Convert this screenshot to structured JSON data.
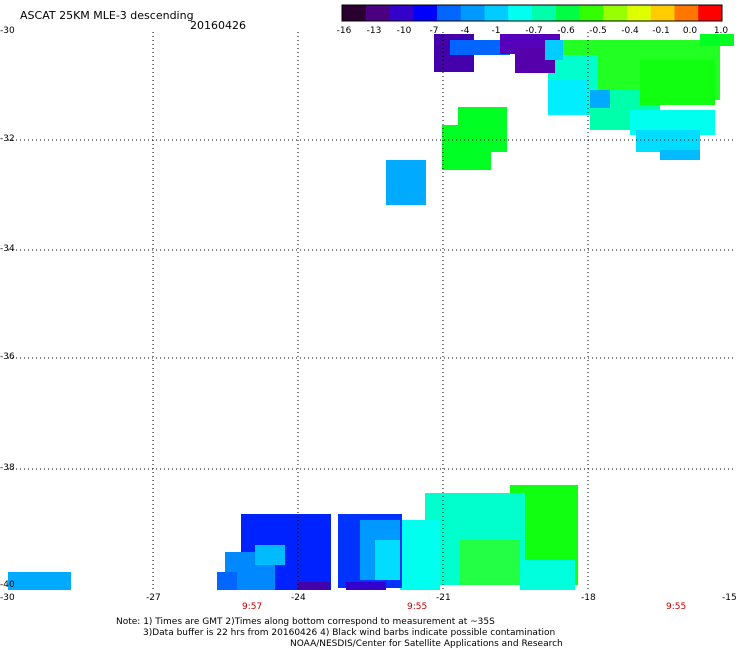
{
  "header": {
    "title": "ASCAT 25KM MLE-3 descending",
    "date": "20160426"
  },
  "colorbar": {
    "labels": [
      "-16",
      "-13",
      "-10",
      "-7",
      "-4",
      "-1",
      "-0.7",
      "-0.6",
      "-0.5",
      "-0.4",
      "-0.1",
      "0.0",
      "1.0"
    ],
    "colors": [
      "#2a0030",
      "#4b0082",
      "#3300cc",
      "#0000ff",
      "#0066ff",
      "#0099ff",
      "#00ccff",
      "#00ffee",
      "#00ffaa",
      "#00ff44",
      "#33ff00",
      "#99ff00",
      "#ddff00",
      "#ffcc00",
      "#ff7700",
      "#ff0000"
    ]
  },
  "axes": {
    "lat_labels": [
      "-30",
      "-32",
      "-34",
      "-36",
      "-38",
      "-40"
    ],
    "lon_labels": [
      "-30",
      "-27",
      "-24",
      "-21",
      "-18",
      "-15"
    ]
  },
  "times": [
    "9:57",
    "9:55",
    "9:55"
  ],
  "footer": {
    "line1": "Note: 1) Times are GMT 2)Times along bottom correspond to measurement at ~35S",
    "line2": "3)Data buffer is 22 hrs from 20160426 4) Black wind barbs indicate possible contamination",
    "line3": "NOAA/NESDIS/Center for Satellite Applications and Research"
  },
  "colors": {
    "green": "#00ff22",
    "cyan": "#00ffff",
    "aqua": "#00ffcc",
    "sky": "#00aaff",
    "blue": "#0044ff",
    "deep_blue": "#0011ff",
    "indigo": "#3300cc",
    "purple": "#4400aa"
  }
}
